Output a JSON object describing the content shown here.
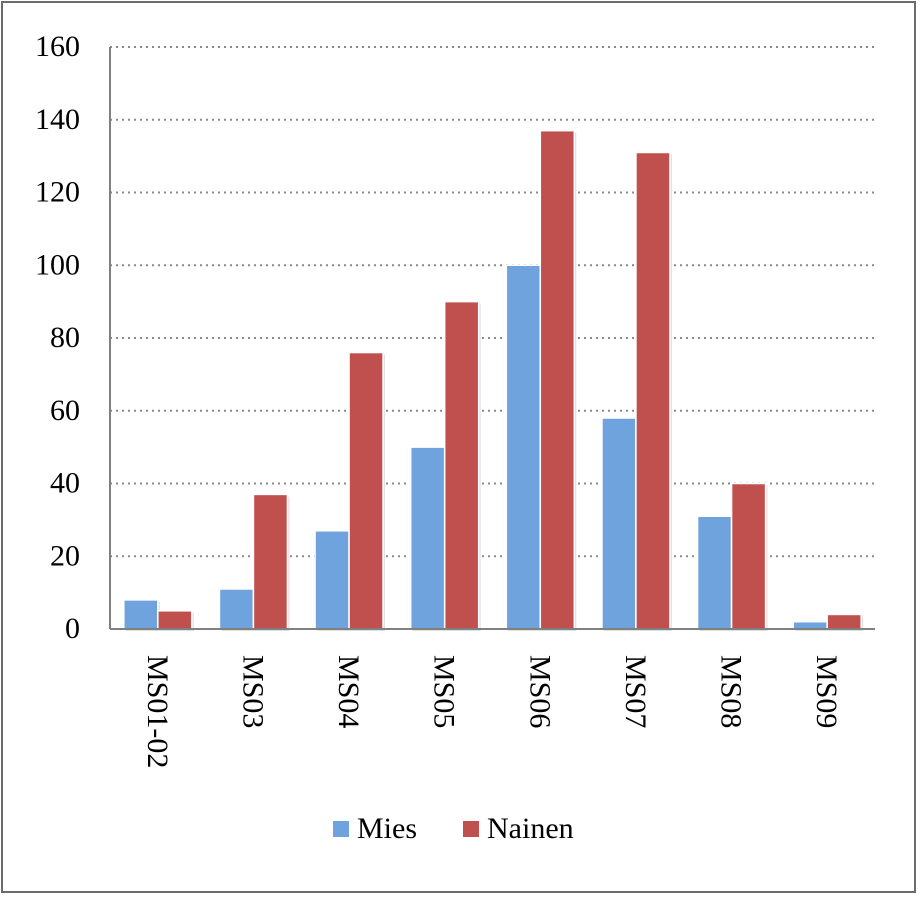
{
  "chart_data": {
    "type": "bar",
    "categories": [
      "MS01-02",
      "MS03",
      "MS04",
      "MS05",
      "MS06",
      "MS07",
      "MS08",
      "MS09"
    ],
    "series": [
      {
        "name": "Mies",
        "color": "#6fa3dd",
        "values": [
          8,
          11,
          27,
          50,
          100,
          58,
          31,
          2
        ]
      },
      {
        "name": "Nainen",
        "color": "#c0504d",
        "values": [
          5,
          37,
          76,
          90,
          137,
          131,
          40,
          4
        ]
      }
    ],
    "ylim": [
      0,
      160
    ],
    "yticks": [
      0,
      20,
      40,
      60,
      80,
      100,
      120,
      140,
      160
    ],
    "grid": true,
    "grid_style": "dotted",
    "legend_position": "bottom",
    "title": "",
    "xlabel": "",
    "ylabel": ""
  }
}
